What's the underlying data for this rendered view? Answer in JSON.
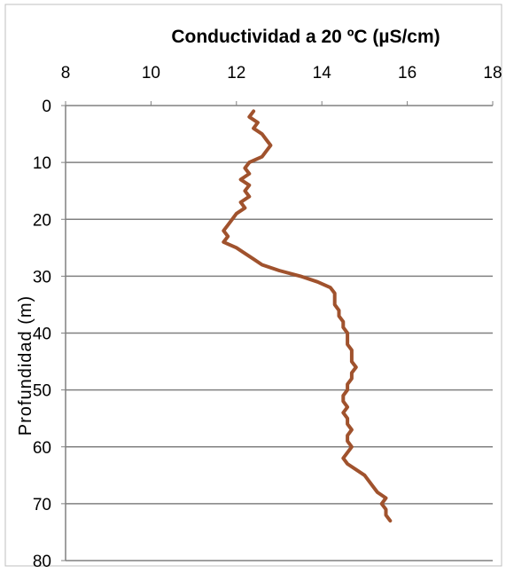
{
  "chart_data": {
    "type": "line",
    "title": "Conductividad  a  20 ºC (µS/cm)",
    "xlabel": "",
    "ylabel": "Profundidad  (m)",
    "xlim": [
      8,
      18
    ],
    "ylim": [
      0,
      80
    ],
    "y_inverted": true,
    "x_axis_position": "top",
    "x_ticks": [
      "8",
      "10",
      "12",
      "14",
      "16",
      "18"
    ],
    "y_ticks": [
      "0",
      "10",
      "20",
      "30",
      "40",
      "50",
      "60",
      "70",
      "80"
    ],
    "grid": "horizontal",
    "line_color": "#a0522d",
    "series": [
      {
        "name": "",
        "depth": [
          1,
          2,
          3,
          4,
          5,
          6,
          7,
          8,
          9,
          10,
          11,
          12,
          13,
          14,
          15,
          16,
          17,
          18,
          19,
          20,
          21,
          22,
          23,
          24,
          25,
          26,
          27,
          28,
          29,
          30,
          31,
          32,
          33,
          34,
          35,
          36,
          37,
          38,
          39,
          40,
          41,
          42,
          43,
          44,
          45,
          46,
          47,
          48,
          49,
          50,
          51,
          52,
          53,
          54,
          55,
          56,
          57,
          58,
          59,
          60,
          61,
          62,
          63,
          64,
          65,
          66,
          67,
          68,
          69,
          70,
          71,
          72,
          73
        ],
        "conductivity": [
          12.4,
          12.3,
          12.5,
          12.4,
          12.6,
          12.7,
          12.8,
          12.7,
          12.6,
          12.3,
          12.2,
          12.3,
          12.1,
          12.3,
          12.2,
          12.3,
          12.1,
          12.2,
          12.0,
          11.9,
          11.8,
          11.7,
          11.8,
          11.7,
          12.0,
          12.2,
          12.4,
          12.6,
          13.0,
          13.5,
          13.9,
          14.2,
          14.3,
          14.3,
          14.3,
          14.4,
          14.4,
          14.5,
          14.5,
          14.6,
          14.6,
          14.6,
          14.7,
          14.7,
          14.7,
          14.8,
          14.7,
          14.7,
          14.6,
          14.6,
          14.5,
          14.5,
          14.6,
          14.5,
          14.6,
          14.6,
          14.7,
          14.6,
          14.6,
          14.7,
          14.6,
          14.5,
          14.6,
          14.8,
          15.0,
          15.1,
          15.2,
          15.3,
          15.5,
          15.4,
          15.5,
          15.5,
          15.6
        ]
      }
    ]
  }
}
